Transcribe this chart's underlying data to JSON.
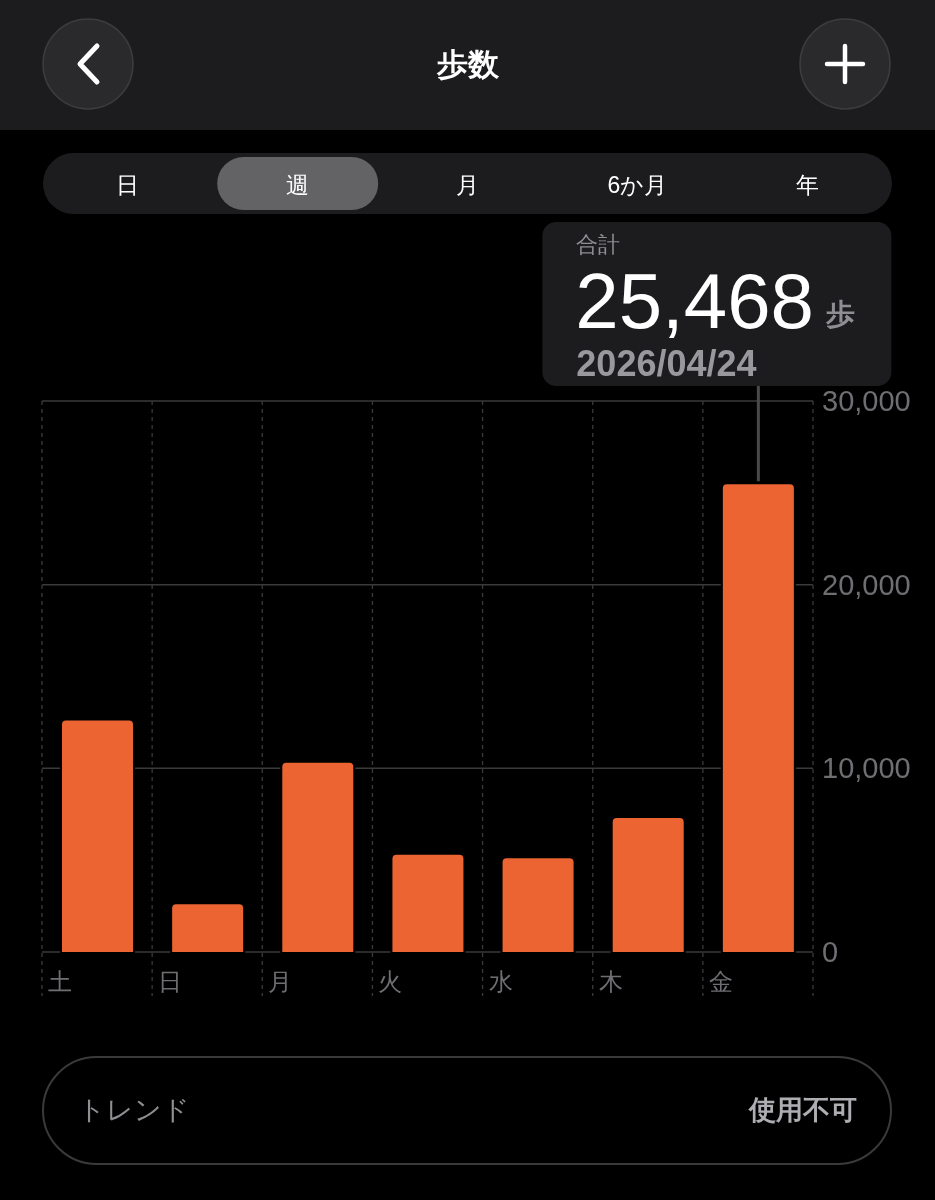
{
  "chart_data": {
    "type": "bar",
    "title": "歩数",
    "categories": [
      "土",
      "日",
      "月",
      "火",
      "水",
      "木",
      "金"
    ],
    "values": [
      12600,
      2600,
      10300,
      5300,
      5100,
      7300,
      25468
    ],
    "color": "#eb6432",
    "ylim": [
      0,
      30000
    ],
    "yticks": [
      0,
      {
        "value": 10000,
        "label": "10,000"
      },
      {
        "value": 20000,
        "label": "20,000"
      },
      {
        "value": 30000,
        "label": "30,000"
      }
    ],
    "grid": true,
    "value_labels": [
      null,
      null,
      null,
      null,
      null,
      null,
      "25,468"
    ],
    "annotations": [
      "日",
      "週",
      "月",
      "6か月",
      "年",
      "合計",
      "歩",
      {
        "text": "2026/04/24",
        "x": "金",
        "y": 25468
      },
      "トレンド",
      "使用不可"
    ]
  }
}
